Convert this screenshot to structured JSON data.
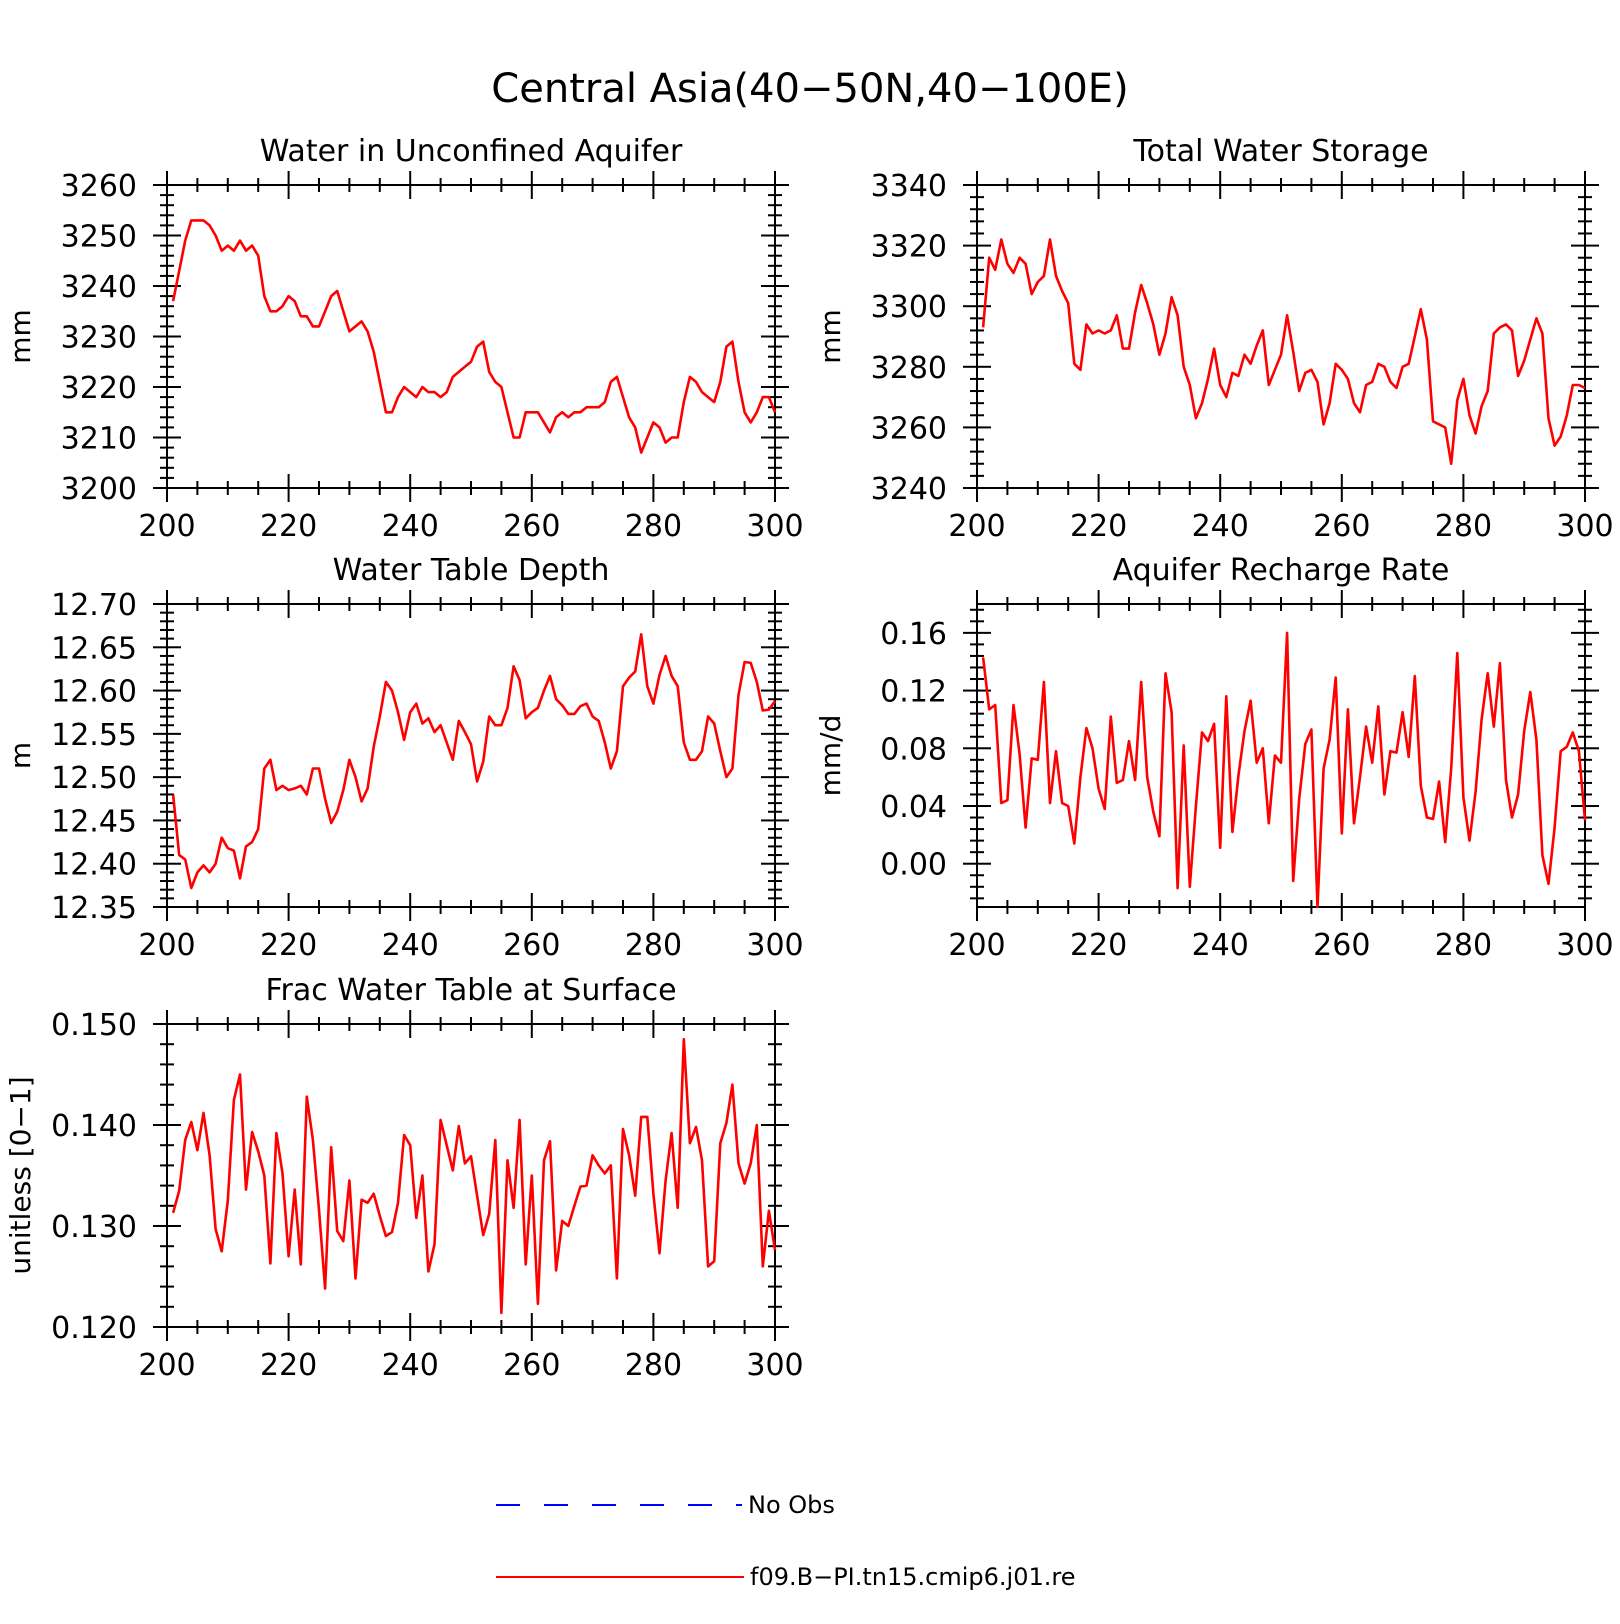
{
  "page_title": "Central Asia(40−50N,40−100E)",
  "series_color": "#ff0000",
  "obs_color": "#0000ff",
  "legend": {
    "obs_label": "No Obs",
    "model_label": "f09.B−PI.tn15.cmip6.j01.re"
  },
  "chart_data": [
    {
      "type": "line",
      "title": "Water in Unconfined Aquifer",
      "ylabel": "mm",
      "xlim": [
        200,
        300
      ],
      "ylim": [
        3200,
        3260
      ],
      "xticks": [
        "200",
        "220",
        "240",
        "260",
        "280",
        "300"
      ],
      "yticks": [
        "3200",
        "3210",
        "3220",
        "3230",
        "3240",
        "3250",
        "3260"
      ],
      "series": [
        {
          "x0": 201,
          "values": [
            3237,
            3243,
            3249,
            3253,
            3253,
            3253,
            3252,
            3250,
            3247,
            3248,
            3247,
            3249,
            3247,
            3248,
            3246,
            3238,
            3235,
            3235,
            3236,
            3238,
            3237,
            3234,
            3234,
            3232,
            3232,
            3235,
            3238,
            3239,
            3235,
            3231,
            3232,
            3233,
            3231,
            3227,
            3221,
            3215,
            3215,
            3218,
            3220,
            3219,
            3218,
            3220,
            3219,
            3219,
            3218,
            3219,
            3222,
            3223,
            3224,
            3225,
            3228,
            3229,
            3223,
            3221,
            3220,
            3215,
            3210,
            3210,
            3215,
            3215,
            3215,
            3213,
            3211,
            3214,
            3215,
            3214,
            3215,
            3215,
            3216,
            3216,
            3216,
            3217,
            3221,
            3222,
            3218,
            3214,
            3212,
            3207,
            3210,
            3213,
            3212,
            3209,
            3210,
            3210,
            3217,
            3222,
            3221,
            3219,
            3218,
            3217,
            3221,
            3228,
            3229,
            3221,
            3215,
            3213,
            3215,
            3218,
            3218,
            3215
          ]
        }
      ]
    },
    {
      "type": "line",
      "title": "Total Water Storage",
      "ylabel": "mm",
      "xlim": [
        200,
        300
      ],
      "ylim": [
        3240,
        3340
      ],
      "xticks": [
        "200",
        "220",
        "240",
        "260",
        "280",
        "300"
      ],
      "yticks": [
        "3240",
        "3260",
        "3280",
        "3300",
        "3320",
        "3340"
      ],
      "series": [
        {
          "x0": 201,
          "values": [
            3293,
            3316,
            3312,
            3322,
            3314,
            3311,
            3316,
            3314,
            3304,
            3308,
            3310,
            3322,
            3310,
            3305,
            3301,
            3281,
            3279,
            3294,
            3291,
            3292,
            3291,
            3292,
            3297,
            3286,
            3286,
            3298,
            3307,
            3301,
            3294,
            3284,
            3291,
            3303,
            3297,
            3280,
            3274,
            3263,
            3268,
            3276,
            3286,
            3274,
            3270,
            3278,
            3277,
            3284,
            3281,
            3287,
            3292,
            3274,
            3279,
            3284,
            3297,
            3285,
            3272,
            3278,
            3279,
            3275,
            3261,
            3268,
            3281,
            3279,
            3276,
            3268,
            3265,
            3274,
            3275,
            3281,
            3280,
            3275,
            3273,
            3280,
            3281,
            3290,
            3299,
            3289,
            3262,
            3261,
            3260,
            3248,
            3269,
            3276,
            3264,
            3258,
            3267,
            3272,
            3291,
            3293,
            3294,
            3292,
            3277,
            3282,
            3289,
            3296,
            3291,
            3263,
            3254,
            3257,
            3264,
            3274,
            3274,
            3273
          ]
        }
      ]
    },
    {
      "type": "line",
      "title": "Water Table Depth",
      "ylabel": "m",
      "xlim": [
        200,
        300
      ],
      "ylim": [
        12.35,
        12.7
      ],
      "xticks": [
        "200",
        "220",
        "240",
        "260",
        "280",
        "300"
      ],
      "yticks": [
        "12.35",
        "12.40",
        "12.45",
        "12.50",
        "12.55",
        "12.60",
        "12.65",
        "12.70"
      ],
      "series": [
        {
          "x0": 201,
          "values": [
            12.48,
            12.41,
            12.405,
            12.372,
            12.39,
            12.398,
            12.39,
            12.4,
            12.43,
            12.418,
            12.415,
            12.383,
            12.42,
            12.425,
            12.44,
            12.51,
            12.52,
            12.485,
            12.49,
            12.485,
            12.487,
            12.49,
            12.48,
            12.51,
            12.51,
            12.475,
            12.447,
            12.46,
            12.485,
            12.52,
            12.5,
            12.472,
            12.487,
            12.535,
            12.57,
            12.61,
            12.6,
            12.575,
            12.543,
            12.575,
            12.585,
            12.562,
            12.568,
            12.552,
            12.56,
            12.54,
            12.52,
            12.565,
            12.552,
            12.538,
            12.495,
            12.518,
            12.57,
            12.56,
            12.56,
            12.58,
            12.628,
            12.612,
            12.568,
            12.575,
            12.58,
            12.6,
            12.617,
            12.59,
            12.583,
            12.573,
            12.573,
            12.582,
            12.585,
            12.57,
            12.565,
            12.54,
            12.51,
            12.53,
            12.605,
            12.615,
            12.622,
            12.665,
            12.605,
            12.585,
            12.618,
            12.64,
            12.617,
            12.605,
            12.54,
            12.52,
            12.52,
            12.53,
            12.57,
            12.562,
            12.53,
            12.5,
            12.51,
            12.595,
            12.633,
            12.632,
            12.61,
            12.577,
            12.578,
            12.588
          ]
        }
      ]
    },
    {
      "type": "line",
      "title": "Aquifer Recharge Rate",
      "ylabel": "mm/d",
      "xlim": [
        200,
        300
      ],
      "ylim": [
        -0.03,
        0.18
      ],
      "xticks": [
        "200",
        "220",
        "240",
        "260",
        "280",
        "300"
      ],
      "yticks": [
        "0.00",
        "0.04",
        "0.08",
        "0.12",
        "0.16"
      ],
      "ytick_values": [
        0,
        0.04,
        0.08,
        0.12,
        0.16
      ],
      "series": [
        {
          "x0": 201,
          "values": [
            0.143,
            0.107,
            0.11,
            0.042,
            0.044,
            0.11,
            0.076,
            0.025,
            0.073,
            0.072,
            0.126,
            0.042,
            0.078,
            0.042,
            0.04,
            0.014,
            0.06,
            0.094,
            0.08,
            0.052,
            0.038,
            0.102,
            0.056,
            0.058,
            0.085,
            0.058,
            0.126,
            0.06,
            0.036,
            0.019,
            0.132,
            0.105,
            -0.017,
            0.082,
            -0.016,
            0.04,
            0.091,
            0.085,
            0.097,
            0.011,
            0.116,
            0.022,
            0.061,
            0.092,
            0.113,
            0.07,
            0.08,
            0.028,
            0.075,
            0.07,
            0.16,
            -0.012,
            0.045,
            0.083,
            0.093,
            -0.03,
            0.066,
            0.086,
            0.129,
            0.021,
            0.107,
            0.028,
            0.06,
            0.095,
            0.07,
            0.109,
            0.048,
            0.078,
            0.077,
            0.105,
            0.074,
            0.13,
            0.054,
            0.032,
            0.031,
            0.057,
            0.015,
            0.066,
            0.146,
            0.046,
            0.016,
            0.05,
            0.1,
            0.132,
            0.095,
            0.139,
            0.058,
            0.032,
            0.048,
            0.092,
            0.119,
            0.086,
            0.006,
            -0.014,
            0.025,
            0.078,
            0.081,
            0.091,
            0.078,
            0.03
          ]
        }
      ]
    },
    {
      "type": "line",
      "title": "Frac Water Table at Surface",
      "ylabel": "unitless [0−1]",
      "xlim": [
        200,
        300
      ],
      "ylim": [
        0.12,
        0.15
      ],
      "xticks": [
        "200",
        "220",
        "240",
        "260",
        "280",
        "300"
      ],
      "yticks": [
        "0.120",
        "0.130",
        "0.140",
        "0.150"
      ],
      "series": [
        {
          "x0": 201,
          "values": [
            0.1313,
            0.1335,
            0.1385,
            0.1403,
            0.1375,
            0.1412,
            0.137,
            0.1297,
            0.1275,
            0.1325,
            0.1425,
            0.145,
            0.1336,
            0.1393,
            0.1374,
            0.135,
            0.1263,
            0.1392,
            0.1352,
            0.127,
            0.1336,
            0.1262,
            0.1428,
            0.1385,
            0.1316,
            0.1238,
            0.1378,
            0.1295,
            0.1285,
            0.1345,
            0.1248,
            0.1326,
            0.1323,
            0.1332,
            0.131,
            0.129,
            0.1294,
            0.1323,
            0.139,
            0.138,
            0.1308,
            0.135,
            0.1255,
            0.1282,
            0.1405,
            0.138,
            0.1355,
            0.1399,
            0.1362,
            0.1369,
            0.133,
            0.1291,
            0.1312,
            0.1385,
            0.1214,
            0.1365,
            0.1318,
            0.1405,
            0.1262,
            0.135,
            0.1223,
            0.1365,
            0.1384,
            0.1256,
            0.1305,
            0.13,
            0.132,
            0.1339,
            0.134,
            0.137,
            0.136,
            0.1352,
            0.136,
            0.1248,
            0.1396,
            0.137,
            0.133,
            0.1408,
            0.1408,
            0.1332,
            0.1273,
            0.1345,
            0.1392,
            0.1318,
            0.1485,
            0.1382,
            0.1398,
            0.1365,
            0.126,
            0.1265,
            0.1382,
            0.1402,
            0.144,
            0.1362,
            0.1342,
            0.1362,
            0.14,
            0.126,
            0.1315,
            0.1276
          ]
        }
      ]
    }
  ]
}
